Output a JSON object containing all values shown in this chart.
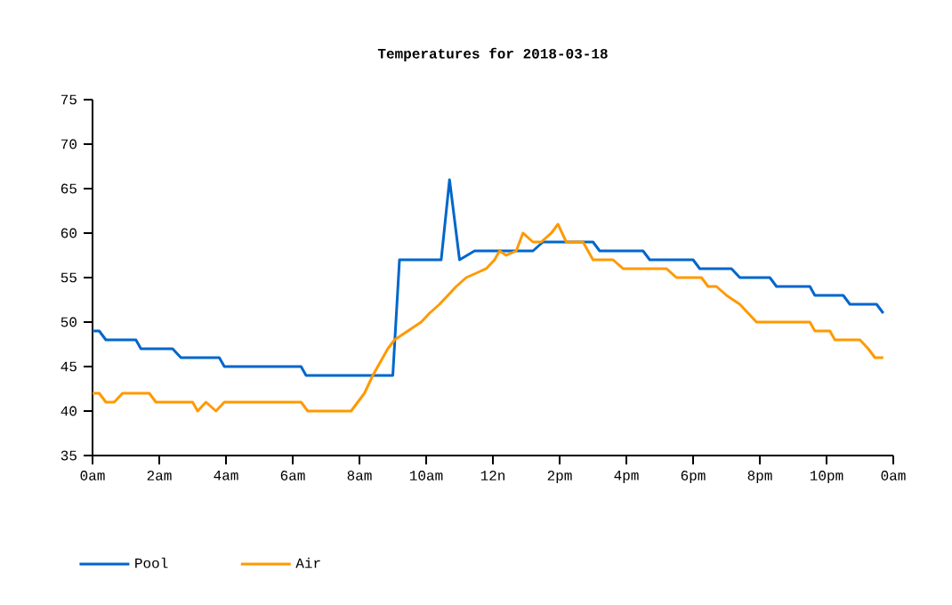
{
  "chart_data": {
    "type": "line",
    "title": "Temperatures for 2018-03-18",
    "xlim": [
      "2018-03-18T00:00",
      "2018-03-19T00:00"
    ],
    "xticks": [
      {
        "value": "2018-03-18T00:00",
        "label": "0am"
      },
      {
        "value": "2018-03-18T02:00",
        "label": "2am"
      },
      {
        "value": "2018-03-18T04:00",
        "label": "4am"
      },
      {
        "value": "2018-03-18T06:00",
        "label": "6am"
      },
      {
        "value": "2018-03-18T08:00",
        "label": "8am"
      },
      {
        "value": "2018-03-18T10:00",
        "label": "10am"
      },
      {
        "value": "2018-03-18T12:00",
        "label": "12n"
      },
      {
        "value": "2018-03-18T14:00",
        "label": "2pm"
      },
      {
        "value": "2018-03-18T16:00",
        "label": "4pm"
      },
      {
        "value": "2018-03-18T18:00",
        "label": "6pm"
      },
      {
        "value": "2018-03-18T20:00",
        "label": "8pm"
      },
      {
        "value": "2018-03-18T22:00",
        "label": "10pm"
      },
      {
        "value": "2018-03-19T00:00",
        "label": "0am"
      }
    ],
    "ylim": [
      35,
      75
    ],
    "yticks": [
      35,
      40,
      45,
      50,
      55,
      60,
      65,
      70,
      75
    ],
    "legend": "bottom left",
    "marker": "none",
    "line_style": "solid",
    "series": [
      {
        "name": "Pool",
        "color": "#0066cc",
        "x": [
          "2018-03-18T00:00",
          "2018-03-18T00:12",
          "2018-03-18T00:24",
          "2018-03-18T01:18",
          "2018-03-18T01:27",
          "2018-03-18T02:24",
          "2018-03-18T02:39",
          "2018-03-18T03:48",
          "2018-03-18T03:57",
          "2018-03-18T06:15",
          "2018-03-18T06:24",
          "2018-03-18T09:00",
          "2018-03-18T09:12",
          "2018-03-18T10:27",
          "2018-03-18T10:42",
          "2018-03-18T11:00",
          "2018-03-18T11:27",
          "2018-03-18T13:12",
          "2018-03-18T13:30",
          "2018-03-18T15:00",
          "2018-03-18T15:12",
          "2018-03-18T16:30",
          "2018-03-18T16:42",
          "2018-03-18T18:00",
          "2018-03-18T18:12",
          "2018-03-18T19:09",
          "2018-03-18T19:24",
          "2018-03-18T20:18",
          "2018-03-18T20:30",
          "2018-03-18T21:30",
          "2018-03-18T21:39",
          "2018-03-18T22:30",
          "2018-03-18T22:42",
          "2018-03-18T23:30",
          "2018-03-18T23:42"
        ],
        "values": [
          49,
          49,
          48,
          48,
          47,
          47,
          46,
          46,
          45,
          45,
          44,
          44,
          57,
          57,
          66,
          57,
          58,
          58,
          59,
          59,
          58,
          58,
          57,
          57,
          56,
          56,
          55,
          55,
          54,
          54,
          53,
          53,
          52,
          52,
          51
        ]
      },
      {
        "name": "Air",
        "color": "#ff9900",
        "x": [
          "2018-03-18T00:00",
          "2018-03-18T00:12",
          "2018-03-18T00:24",
          "2018-03-18T00:39",
          "2018-03-18T00:54",
          "2018-03-18T01:42",
          "2018-03-18T01:54",
          "2018-03-18T03:00",
          "2018-03-18T03:09",
          "2018-03-18T03:24",
          "2018-03-18T03:42",
          "2018-03-18T03:57",
          "2018-03-18T06:15",
          "2018-03-18T06:27",
          "2018-03-18T07:45",
          "2018-03-18T08:09",
          "2018-03-18T08:24",
          "2018-03-18T08:33",
          "2018-03-18T08:51",
          "2018-03-18T09:03",
          "2018-03-18T09:27",
          "2018-03-18T09:51",
          "2018-03-18T10:06",
          "2018-03-18T10:24",
          "2018-03-18T10:39",
          "2018-03-18T10:54",
          "2018-03-18T11:12",
          "2018-03-18T11:30",
          "2018-03-18T11:48",
          "2018-03-18T12:03",
          "2018-03-18T12:12",
          "2018-03-18T12:24",
          "2018-03-18T12:42",
          "2018-03-18T12:54",
          "2018-03-18T13:12",
          "2018-03-18T13:27",
          "2018-03-18T13:45",
          "2018-03-18T13:57",
          "2018-03-18T14:12",
          "2018-03-18T14:42",
          "2018-03-18T15:00",
          "2018-03-18T15:36",
          "2018-03-18T15:54",
          "2018-03-18T17:12",
          "2018-03-18T17:30",
          "2018-03-18T18:15",
          "2018-03-18T18:27",
          "2018-03-18T18:42",
          "2018-03-18T19:00",
          "2018-03-18T19:24",
          "2018-03-18T19:39",
          "2018-03-18T19:54",
          "2018-03-18T21:30",
          "2018-03-18T21:39",
          "2018-03-18T22:06",
          "2018-03-18T22:15",
          "2018-03-18T23:00",
          "2018-03-18T23:15",
          "2018-03-18T23:27",
          "2018-03-18T23:42"
        ],
        "values": [
          42,
          42,
          41,
          41,
          42,
          42,
          41,
          41,
          40,
          41,
          40,
          41,
          41,
          40,
          40,
          42,
          44,
          45,
          47,
          48,
          49,
          50,
          51,
          52,
          53,
          54,
          55,
          55.5,
          56,
          57,
          58,
          57.5,
          58,
          60,
          59,
          59,
          60,
          61,
          59,
          59,
          57,
          57,
          56,
          56,
          55,
          55,
          54,
          54,
          53,
          52,
          51,
          50,
          50,
          49,
          49,
          48,
          48,
          47,
          46,
          46
        ]
      }
    ]
  }
}
